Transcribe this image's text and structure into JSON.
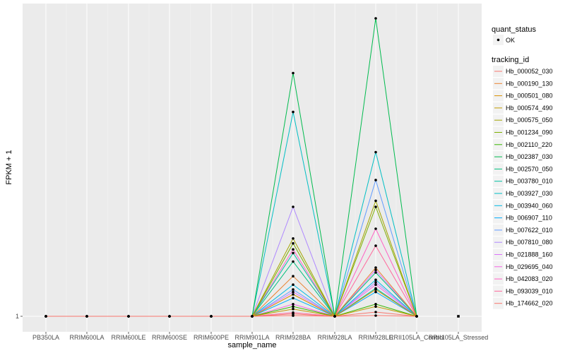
{
  "chart_data": {
    "type": "line",
    "xlabel": "sample_name",
    "ylabel": "FPKM + 1",
    "y_tick_labels": [
      "1"
    ],
    "categories": [
      "PB350LA",
      "RRIM600LA",
      "RRIM600LE",
      "RRIM600SE",
      "RRIM600PE",
      "RRIM901LA",
      "RRIM928BA",
      "RRIM928LA",
      "RRIM928LE",
      "RRII105LA_Control",
      "RRII105LA_Stressed"
    ],
    "grid": true,
    "legend_placement": "right",
    "shape_legend": {
      "title": "quant_status",
      "entries": [
        "OK"
      ]
    },
    "color_legend_title": "tracking_id",
    "series": [
      {
        "name": "Hb_000052_030",
        "color": "#F8766D",
        "values": [
          1,
          1,
          1,
          1,
          1,
          1,
          1.05,
          1,
          1.06,
          1,
          null
        ]
      },
      {
        "name": "Hb_000190_130",
        "color": "#EA8331",
        "values": [
          1,
          1,
          1,
          1,
          1,
          1,
          4.3,
          1,
          5.0,
          1,
          null
        ]
      },
      {
        "name": "Hb_000501_080",
        "color": "#D89000",
        "values": [
          1,
          1,
          1,
          1,
          1,
          1,
          2.8,
          1,
          3.2,
          1,
          null
        ]
      },
      {
        "name": "Hb_000574_490",
        "color": "#C09B00",
        "values": [
          1,
          1,
          1,
          1,
          1,
          1,
          1.6,
          1,
          1.8,
          1,
          null
        ]
      },
      {
        "name": "Hb_000575_050",
        "color": "#A3A500",
        "values": [
          1,
          1,
          1,
          1,
          1,
          1,
          7.4,
          1,
          10.5,
          1,
          null
        ]
      },
      {
        "name": "Hb_001234_090",
        "color": "#7CAE00",
        "values": [
          1,
          1,
          1,
          1,
          1,
          1,
          7.0,
          1,
          10.0,
          1,
          null
        ]
      },
      {
        "name": "Hb_002110_220",
        "color": "#39B600",
        "values": [
          1,
          1,
          1,
          1,
          1,
          1,
          1.8,
          1,
          2.0,
          1,
          null
        ]
      },
      {
        "name": "Hb_002387_030",
        "color": "#00BB4E",
        "values": [
          1,
          1,
          1,
          1,
          1,
          1,
          21.0,
          1,
          25.5,
          1,
          null
        ]
      },
      {
        "name": "Hb_002570_050",
        "color": "#00BF7D",
        "values": [
          1,
          1,
          1,
          1,
          1,
          1,
          5.5,
          1,
          4.6,
          1,
          null
        ]
      },
      {
        "name": "Hb_003780_010",
        "color": "#00C1A3",
        "values": [
          1,
          1,
          1,
          1,
          1,
          1,
          6.2,
          1,
          3.3,
          1,
          null
        ]
      },
      {
        "name": "Hb_003927_030",
        "color": "#00BFC4",
        "values": [
          1,
          1,
          1,
          1,
          1,
          1,
          17.8,
          1,
          14.5,
          1,
          null
        ]
      },
      {
        "name": "Hb_003940_060",
        "color": "#00B9E3",
        "values": [
          1,
          1,
          1,
          1,
          1,
          1,
          3.6,
          1,
          4.0,
          1,
          null
        ]
      },
      {
        "name": "Hb_006907_110",
        "color": "#00ADFA",
        "values": [
          1,
          1,
          1,
          1,
          1,
          1,
          2.5,
          1,
          3.0,
          1,
          null
        ]
      },
      {
        "name": "Hb_007622_010",
        "color": "#619CFF",
        "values": [
          1,
          1,
          1,
          1,
          1,
          1,
          3.2,
          1,
          12.2,
          1,
          null
        ]
      },
      {
        "name": "Hb_007810_080",
        "color": "#AE87FF",
        "values": [
          1,
          1,
          1,
          1,
          1,
          1,
          10.0,
          1,
          3.8,
          1,
          null
        ]
      },
      {
        "name": "Hb_021888_160",
        "color": "#DB72FB",
        "values": [
          1,
          1,
          1,
          1,
          1,
          1,
          3.0,
          1,
          4.8,
          1,
          null
        ]
      },
      {
        "name": "Hb_029695_040",
        "color": "#F564E3",
        "values": [
          1,
          1,
          1,
          1,
          1,
          1,
          2.0,
          1,
          3.6,
          1,
          null
        ]
      },
      {
        "name": "Hb_042083_020",
        "color": "#FF61C3",
        "values": [
          1,
          1,
          1,
          1,
          1,
          1,
          6.5,
          1,
          8.2,
          1,
          null
        ]
      },
      {
        "name": "Hb_093039_010",
        "color": "#FF699C",
        "values": [
          1,
          1,
          1,
          1,
          1,
          1,
          1.3,
          1,
          6.8,
          1,
          null
        ]
      },
      {
        "name": "Hb_174662_020",
        "color": "#F8766D",
        "values": [
          1,
          1,
          1,
          1,
          1,
          1,
          1.2,
          1,
          1.35,
          1,
          null
        ]
      }
    ],
    "points_only": [
      {
        "category": "RRII105LA_Stressed",
        "value": 1
      }
    ]
  }
}
